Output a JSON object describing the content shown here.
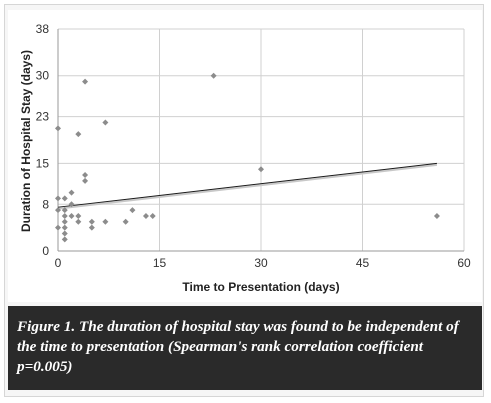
{
  "chart_data": {
    "type": "scatter",
    "title": "",
    "xlabel": "Time to Presentation (days)",
    "ylabel": "Duration of Hospital Stay (days)",
    "xlim": [
      0,
      60
    ],
    "ylim": [
      0,
      38
    ],
    "x_ticks": [
      "0",
      "15",
      "30",
      "45",
      "60"
    ],
    "y_ticks": [
      "0",
      "8",
      "15",
      "23",
      "30",
      "38"
    ],
    "grid": true,
    "legend": "none",
    "colors": {
      "points": "#8c8c8c",
      "trendline": "#1a1a1a",
      "grid": "#d0d0d0"
    },
    "points": [
      {
        "x": 0,
        "y": 21
      },
      {
        "x": 0,
        "y": 9
      },
      {
        "x": 0,
        "y": 7
      },
      {
        "x": 0,
        "y": 4
      },
      {
        "x": 1,
        "y": 9
      },
      {
        "x": 1,
        "y": 7
      },
      {
        "x": 1,
        "y": 6
      },
      {
        "x": 1,
        "y": 5
      },
      {
        "x": 1,
        "y": 4
      },
      {
        "x": 1,
        "y": 3
      },
      {
        "x": 1,
        "y": 2
      },
      {
        "x": 2,
        "y": 10
      },
      {
        "x": 2,
        "y": 8
      },
      {
        "x": 2,
        "y": 6
      },
      {
        "x": 3,
        "y": 20
      },
      {
        "x": 3,
        "y": 6
      },
      {
        "x": 3,
        "y": 5
      },
      {
        "x": 4,
        "y": 29
      },
      {
        "x": 4,
        "y": 13
      },
      {
        "x": 4,
        "y": 12
      },
      {
        "x": 5,
        "y": 5
      },
      {
        "x": 5,
        "y": 4
      },
      {
        "x": 7,
        "y": 22
      },
      {
        "x": 7,
        "y": 5
      },
      {
        "x": 10,
        "y": 5
      },
      {
        "x": 11,
        "y": 7
      },
      {
        "x": 13,
        "y": 6
      },
      {
        "x": 14,
        "y": 6
      },
      {
        "x": 23,
        "y": 30
      },
      {
        "x": 30,
        "y": 14
      },
      {
        "x": 56,
        "y": 6
      }
    ],
    "trendline": {
      "type": "linear",
      "x": [
        0,
        56
      ],
      "y": [
        7.5,
        15
      ]
    }
  },
  "caption": "Figure 1. The duration of hospital stay was found to be independent of the time to presentation (Spearman's rank correlation coefficient p=0.005)"
}
